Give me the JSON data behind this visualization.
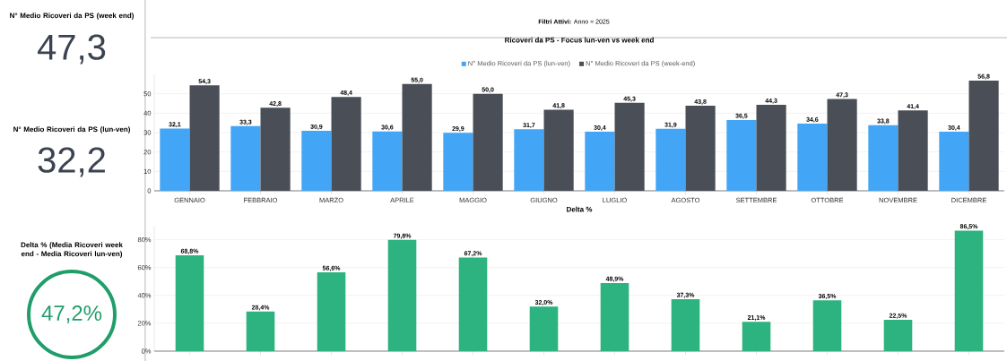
{
  "chart_data": [
    {
      "type": "other",
      "title": "N° Medio Ricoveri da PS (week end)",
      "annotations": [
        "47,3"
      ]
    },
    {
      "type": "other",
      "title": "N° Medio Ricoveri da PS (lun-ven)",
      "annotations": [
        "32,2"
      ]
    },
    {
      "type": "other",
      "title": "Delta % (Media Ricoveri week end - Media Ricoveri lun-ven)",
      "annotations": [
        "47,2%"
      ]
    },
    {
      "type": "bar",
      "title": "Ricoveri da PS - Focus lun-ven vs week end",
      "annotations": [
        "**Filtri Attivi:** Anno = 2025"
      ],
      "categories": [
        "GENNAIO",
        "FEBBRAIO",
        "MARZO",
        "APRILE",
        "MAGGIO",
        "GIUGNO",
        "LUGLIO",
        "AGOSTO",
        "SETTEMBRE",
        "OTTOBRE",
        "NOVEMBRE",
        "DICEMBRE"
      ],
      "series": [
        {
          "name": "N° Medio Ricoveri da PS (lun-ven)",
          "color": "#42a5f5",
          "values": [
            32.1,
            33.3,
            30.9,
            30.6,
            29.9,
            31.7,
            30.4,
            31.9,
            36.5,
            34.6,
            33.8,
            30.4
          ],
          "value_labels": [
            "32,1",
            "33,3",
            "30,9",
            "30,6",
            "29,9",
            "31,7",
            "30,4",
            "31,9",
            "36,5",
            "34,6",
            "33,8",
            "30,4"
          ]
        },
        {
          "name": "N° Medio Ricoveri da PS (week-end)",
          "color": "#4a4e56",
          "values": [
            54.3,
            42.8,
            48.4,
            55.0,
            50.0,
            41.8,
            45.3,
            43.8,
            44.3,
            47.3,
            41.4,
            56.8
          ],
          "value_labels": [
            "54,3",
            "42,8",
            "48,4",
            "55,0",
            "50,0",
            "41,8",
            "45,3",
            "43,8",
            "44,3",
            "47,3",
            "41,4",
            "56,8"
          ]
        }
      ],
      "ylim": [
        0,
        60
      ],
      "yticks": [
        0,
        10,
        20,
        30,
        40,
        50
      ],
      "grid": true,
      "legend": "top"
    },
    {
      "type": "bar",
      "title": "Delta %",
      "categories": [
        null,
        null,
        null,
        null,
        null,
        null,
        null,
        null,
        null,
        null,
        null,
        null
      ],
      "values": [
        68.8,
        28.4,
        56.6,
        79.8,
        67.2,
        32.0,
        48.9,
        37.3,
        21.1,
        36.5,
        22.5,
        86.5
      ],
      "color": "#2db37f",
      "value_labels": [
        "68,8%",
        "28,4%",
        "56,6%",
        "79,8%",
        "67,2%",
        "32,0%",
        "48,9%",
        "37,3%",
        "21,1%",
        "36,5%",
        "22,5%",
        "86,5%"
      ],
      "ylim": [
        0,
        90
      ],
      "yticks": [
        {
          "value": 0,
          "label": "0%"
        },
        {
          "value": 20,
          "label": "20%"
        },
        {
          "value": 40,
          "label": "40%"
        },
        {
          "value": 60,
          "label": "60%"
        },
        {
          "value": 80,
          "label": "80%"
        }
      ],
      "grid": true
    }
  ]
}
